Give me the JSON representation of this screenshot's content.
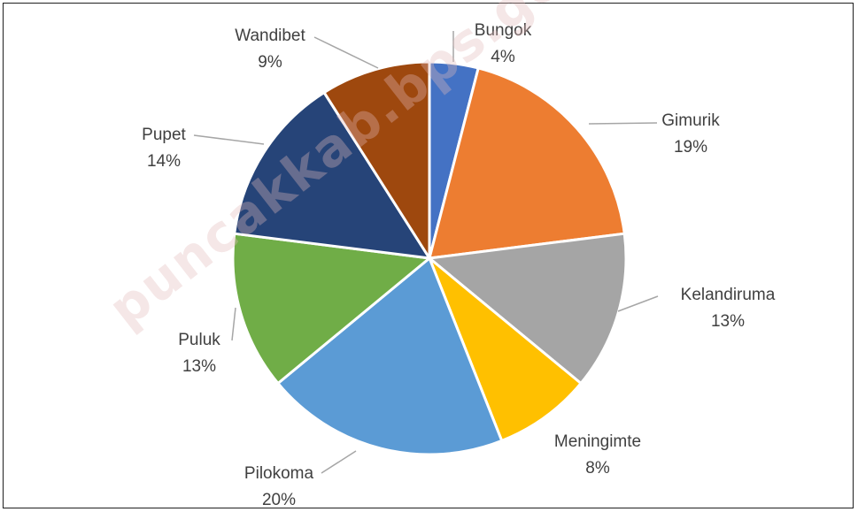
{
  "chart_data": {
    "type": "pie",
    "title": "",
    "slices": [
      {
        "label": "Bungok",
        "value": 4,
        "display": "4%",
        "color": "#4472C4"
      },
      {
        "label": "Gimurik",
        "value": 19,
        "display": "19%",
        "color": "#ED7D31"
      },
      {
        "label": "Kelandiruma",
        "value": 13,
        "display": "13%",
        "color": "#A5A5A5"
      },
      {
        "label": "Meningimte",
        "value": 8,
        "display": "8%",
        "color": "#FFC000"
      },
      {
        "label": "Pilokoma",
        "value": 20,
        "display": "20%",
        "color": "#5B9BD5"
      },
      {
        "label": "Puluk",
        "value": 13,
        "display": "13%",
        "color": "#70AD47"
      },
      {
        "label": "Pupet",
        "value": 14,
        "display": "14%",
        "color": "#264478"
      },
      {
        "label": "Wandibet",
        "value": 9,
        "display": "9%",
        "color": "#9E480E"
      }
    ],
    "start": "top",
    "direction": "clockwise",
    "legend": "none",
    "label_style": "category name and percentage with leader lines"
  },
  "watermark": "puncakkab.bps.go.id"
}
